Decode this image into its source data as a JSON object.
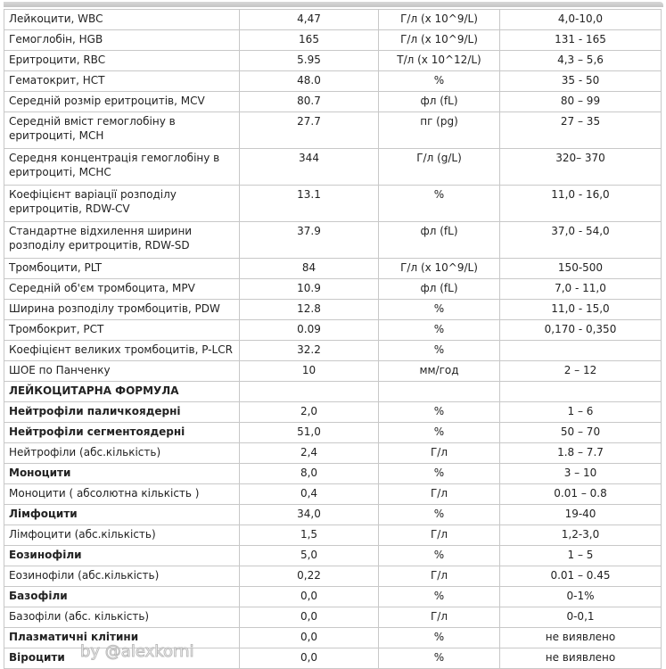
{
  "rows": [
    {
      "name": "Лейкоцити, WBC",
      "value": "4,47",
      "unit": "Г/л (x 10^9/L)",
      "range": "4,0-10,0"
    },
    {
      "name": "Гемоглобін, HGB",
      "value": "165",
      "unit": "Г/л (x 10^9/L)",
      "range": "131 - 165"
    },
    {
      "name": "Еритроцити, RBC",
      "value": "5.95",
      "unit": "Т/л (x 10^12/L)",
      "range": "4,3 – 5,6"
    },
    {
      "name": "Гематокрит, HCT",
      "value": "48.0",
      "unit": "%",
      "range": "35 - 50"
    },
    {
      "name": "Середній розмір еритроцитів, MCV",
      "value": "80.7",
      "unit": "фл (fL)",
      "range": "80 – 99"
    },
    {
      "name": "Середній вміст гемоглобіну в еритроциті, MCH",
      "value": "27.7",
      "unit": "пг (pg)",
      "range": "27 – 35",
      "double": true
    },
    {
      "name": "Середня концентрація гемоглобіну в еритроциті, MCHC",
      "value": "344",
      "unit": "Г/л (g/L)",
      "range": "320– 370",
      "double": true
    },
    {
      "name": "Коефіцієнт варіації розподілу еритроцитів, RDW-CV",
      "value": "13.1",
      "unit": "%",
      "range": "11,0 - 16,0",
      "double": true
    },
    {
      "name": "Стандартне відхилення ширини розподілу еритроцитів, RDW-SD",
      "value": "37.9",
      "unit": "фл (fL)",
      "range": "37,0 - 54,0",
      "double": true
    },
    {
      "name": "Тромбоцити, PLT",
      "value": "84",
      "unit": "Г/л (x 10^9/L)",
      "range": "150-500"
    },
    {
      "name": "Середній об'єм тромбоцита, MPV",
      "value": "10.9",
      "unit": "фл (fL)",
      "range": "7,0 - 11,0"
    },
    {
      "name": "Ширина розподілу тромбоцитів, PDW",
      "value": "12.8",
      "unit": "%",
      "range": "11,0 - 15,0"
    },
    {
      "name": "Тромбокрит, PCT",
      "value": "0.09",
      "unit": "%",
      "range": "0,170 - 0,350"
    },
    {
      "name": "Коефіцієнт великих тромбоцитів, P-LCR",
      "value": "32.2",
      "unit": "%",
      "range": ""
    },
    {
      "name": "ШОЕ по Панченку",
      "value": "10",
      "unit": "мм/год",
      "range": "2 – 12"
    },
    {
      "name": "ЛЕЙКОЦИТАРНА ФОРМУЛА",
      "value": "",
      "unit": "",
      "range": "",
      "bold": true
    },
    {
      "name": "Нейтрофіли паличкоядерні",
      "value": "2,0",
      "unit": "%",
      "range": "1 – 6",
      "bold": true
    },
    {
      "name": "Нейтрофіли сегментоядерні",
      "value": "51,0",
      "unit": "%",
      "range": "50 – 70",
      "bold": true
    },
    {
      "name": "Нейтрофіли (абс.кількість)",
      "value": "2,4",
      "unit": "Г/л",
      "range": "1.8 – 7.7"
    },
    {
      "name": "Моноцити",
      "value": "8,0",
      "unit": "%",
      "range": "3 – 10",
      "bold": true
    },
    {
      "name": "Моноцити ( абсолютна кількість )",
      "value": "0,4",
      "unit": "Г/л",
      "range": "0.01 – 0.8"
    },
    {
      "name": "Лімфоцити",
      "value": "34,0",
      "unit": "%",
      "range": "19-40",
      "bold": true
    },
    {
      "name": "Лімфоцити (абс.кількість)",
      "value": "1,5",
      "unit": "Г/л",
      "range": "1,2-3,0"
    },
    {
      "name": "Еозинофіли",
      "value": "5,0",
      "unit": "%",
      "range": "1 – 5",
      "bold": true
    },
    {
      "name": "Еозинофіли (абс.кількість)",
      "value": "0,22",
      "unit": "Г/л",
      "range": "0.01 – 0.45"
    },
    {
      "name": "Базофіли",
      "value": "0,0",
      "unit": "%",
      "range": "0-1%",
      "bold": true
    },
    {
      "name": "Базофіли (абс. кількість)",
      "value": "0,0",
      "unit": "Г/л",
      "range": "0-0,1"
    },
    {
      "name": "Плазматичні клітини",
      "value": "0,0",
      "unit": "%",
      "range": "не виявлено",
      "bold": true
    },
    {
      "name": "Віроцити",
      "value": "0,0",
      "unit": "%",
      "range": "не виявлено",
      "bold": true
    }
  ],
  "watermark": "by @alexkorni"
}
